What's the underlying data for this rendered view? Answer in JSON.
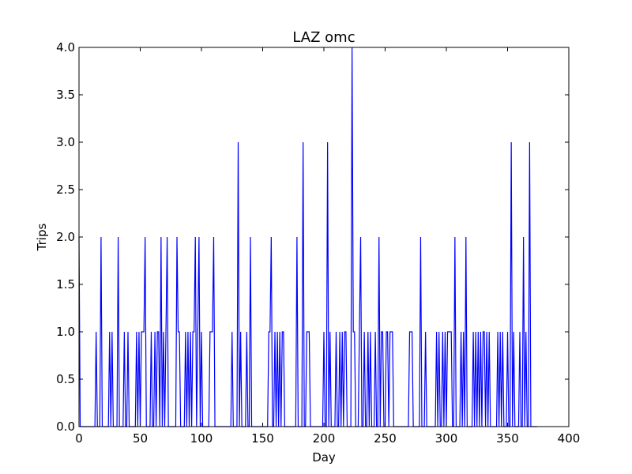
{
  "chart_data": {
    "type": "line",
    "title": "LAZ omc",
    "xlabel": "Day",
    "ylabel": "Trips",
    "xlim": [
      0,
      400
    ],
    "ylim": [
      0,
      4.0
    ],
    "xticks": [
      0,
      50,
      100,
      150,
      200,
      250,
      300,
      350,
      400
    ],
    "xtick_labels": [
      "0",
      "50",
      "100",
      "150",
      "200",
      "250",
      "300",
      "350",
      "400"
    ],
    "yticks": [
      0,
      0.5,
      1,
      1.5,
      2,
      2.5,
      3,
      3.5,
      4
    ],
    "ytick_labels": [
      "0.0",
      "0.5",
      "1.0",
      "1.5",
      "2.0",
      "2.5",
      "3.0",
      "3.5",
      "4.0"
    ],
    "grid": false,
    "line_color": "#0000ff",
    "series": [
      {
        "values": [
          2,
          0,
          0,
          0,
          0,
          0,
          0,
          0,
          0,
          0,
          0,
          0,
          0,
          0,
          1,
          0,
          0,
          0,
          2,
          0,
          0,
          0,
          0,
          0,
          0,
          1,
          0,
          1,
          0,
          0,
          0,
          0,
          2,
          0,
          0,
          0,
          0,
          1,
          0,
          0,
          1,
          0,
          0,
          0,
          0,
          0,
          0,
          1,
          0,
          1,
          0,
          1,
          1,
          1,
          2,
          0,
          0,
          0,
          0,
          1,
          0,
          0,
          1,
          0,
          1,
          1,
          0,
          2,
          0,
          1,
          0,
          1,
          2,
          0,
          0,
          0,
          0,
          0,
          0,
          0,
          2,
          1,
          1,
          0,
          0,
          0,
          0,
          1,
          0,
          1,
          0,
          1,
          0,
          1,
          1,
          2,
          0,
          1,
          2,
          0,
          1,
          0,
          0,
          0,
          0,
          0,
          0,
          1,
          1,
          1,
          2,
          0,
          0,
          0,
          0,
          0,
          0,
          0,
          0,
          0,
          0,
          0,
          0,
          0,
          0,
          1,
          0,
          0,
          0,
          0,
          3,
          0,
          1,
          0,
          0,
          0,
          0,
          1,
          0,
          0,
          2,
          0,
          0,
          0,
          0,
          0,
          0,
          0,
          0,
          0,
          0,
          0,
          0,
          0,
          0,
          1,
          1,
          2,
          0,
          0,
          1,
          0,
          1,
          0,
          1,
          0,
          1,
          1,
          0,
          0,
          0,
          0,
          0,
          0,
          0,
          0,
          0,
          0,
          2,
          0,
          0,
          0,
          0,
          3,
          0,
          0,
          1,
          1,
          1,
          0,
          0,
          0,
          0,
          0,
          0,
          0,
          0,
          0,
          0,
          0,
          1,
          0,
          0,
          3,
          0,
          1,
          0,
          0,
          0,
          0,
          1,
          0,
          0,
          1,
          0,
          1,
          0,
          1,
          1,
          0,
          0,
          0,
          0,
          4,
          1,
          1,
          0,
          0,
          0,
          1,
          2,
          0,
          0,
          1,
          0,
          0,
          1,
          0,
          1,
          0,
          0,
          0,
          1,
          0,
          0,
          2,
          0,
          1,
          1,
          0,
          0,
          1,
          1,
          0,
          1,
          1,
          1,
          0,
          0,
          0,
          0,
          0,
          0,
          0,
          0,
          0,
          0,
          0,
          0,
          0,
          1,
          1,
          1,
          0,
          0,
          0,
          0,
          0,
          0,
          2,
          0,
          0,
          0,
          1,
          0,
          0,
          0,
          0,
          0,
          0,
          0,
          0,
          1,
          0,
          1,
          0,
          0,
          1,
          0,
          1,
          0,
          1,
          1,
          1,
          1,
          0,
          0,
          2,
          0,
          0,
          0,
          0,
          1,
          0,
          1,
          0,
          2,
          0,
          0,
          0,
          0,
          0,
          1,
          0,
          1,
          0,
          1,
          0,
          1,
          0,
          1,
          1,
          0,
          1,
          0,
          1,
          0,
          0,
          0,
          0,
          0,
          0,
          1,
          0,
          1,
          0,
          1,
          0,
          0,
          0,
          1,
          0,
          0,
          3,
          0,
          1,
          0,
          0,
          0,
          0,
          1,
          0,
          0,
          2,
          0,
          1,
          0,
          0,
          3,
          0,
          0,
          0,
          0,
          0,
          0
        ]
      }
    ]
  }
}
